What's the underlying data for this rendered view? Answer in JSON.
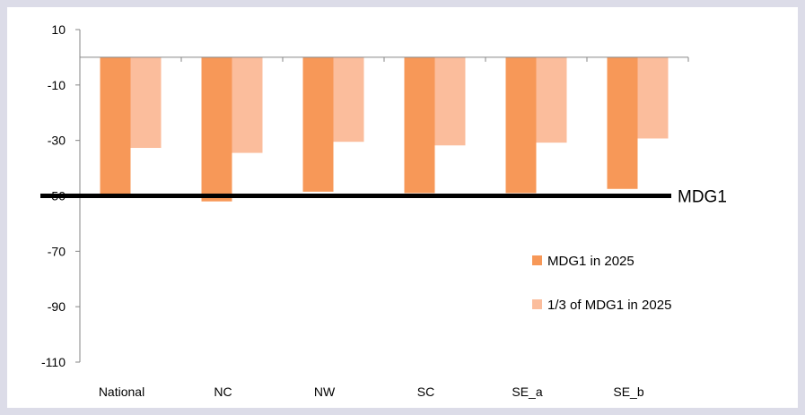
{
  "chart_data": {
    "type": "bar",
    "categories": [
      "National",
      "NC",
      "NW",
      "SC",
      "SE_a",
      "SE_b"
    ],
    "series": [
      {
        "name": "MDG1 in 2025",
        "color": "#f79858",
        "values": [
          -49.5,
          -52,
          -48.5,
          -49,
          -49,
          -47.5
        ]
      },
      {
        "name": "1/3 of MDG1 in 2025",
        "color": "#fbbd9c",
        "values": [
          -32.7,
          -34.5,
          -30.5,
          -31.8,
          -30.8,
          -29.3
        ]
      }
    ],
    "ylim": [
      -110,
      10
    ],
    "yticks": [
      10,
      -10,
      -30,
      -50,
      -70,
      -90,
      -110
    ],
    "reference_line": {
      "value": -50,
      "label": "MDG1",
      "color": "#000000"
    },
    "legend_position": "right-middle",
    "grid": false,
    "title": "",
    "xlabel": "",
    "ylabel": ""
  }
}
